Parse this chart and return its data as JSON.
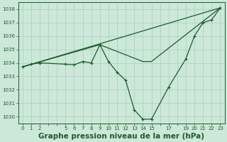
{
  "bg_color": "#cce8d8",
  "grid_color": "#aacfbc",
  "line_color": "#1a5c2a",
  "marker_color": "#1a5c2a",
  "xlabel": "Graphe pression niveau de la mer (hPa)",
  "xlabel_fontsize": 7.5,
  "ylim": [
    1029.5,
    1038.5
  ],
  "yticks": [
    1030,
    1031,
    1032,
    1033,
    1034,
    1035,
    1036,
    1037,
    1038
  ],
  "xlim": [
    -0.5,
    23.5
  ],
  "xtick_positions": [
    0,
    1,
    2,
    3,
    4,
    5,
    6,
    7,
    8,
    9,
    10,
    11,
    12,
    13,
    14,
    15,
    16,
    17,
    18,
    19,
    20,
    21,
    22,
    23
  ],
  "xtick_labels": [
    "0",
    "1",
    "2",
    "",
    "",
    "5",
    "6",
    "7",
    "8",
    "9",
    "10",
    "11",
    "12",
    "13",
    "14",
    "15",
    "",
    "17",
    "",
    "19",
    "20",
    "21",
    "22",
    "23"
  ],
  "series1_x": [
    0,
    1,
    2,
    5,
    6,
    7,
    8,
    9,
    10,
    11,
    12,
    13,
    14,
    15,
    17,
    19,
    20,
    21,
    22,
    23
  ],
  "series1_y": [
    1033.7,
    1033.9,
    1034.0,
    1033.9,
    1033.85,
    1034.1,
    1034.0,
    1035.35,
    1034.1,
    1033.3,
    1032.7,
    1030.5,
    1029.8,
    1029.8,
    1032.2,
    1034.3,
    1036.0,
    1037.0,
    1037.2,
    1038.1
  ],
  "series2_x": [
    0,
    9,
    14,
    15,
    23
  ],
  "series2_y": [
    1033.7,
    1035.35,
    1034.1,
    1034.1,
    1038.1
  ],
  "series3_x": [
    0,
    23
  ],
  "series3_y": [
    1033.7,
    1038.1
  ]
}
